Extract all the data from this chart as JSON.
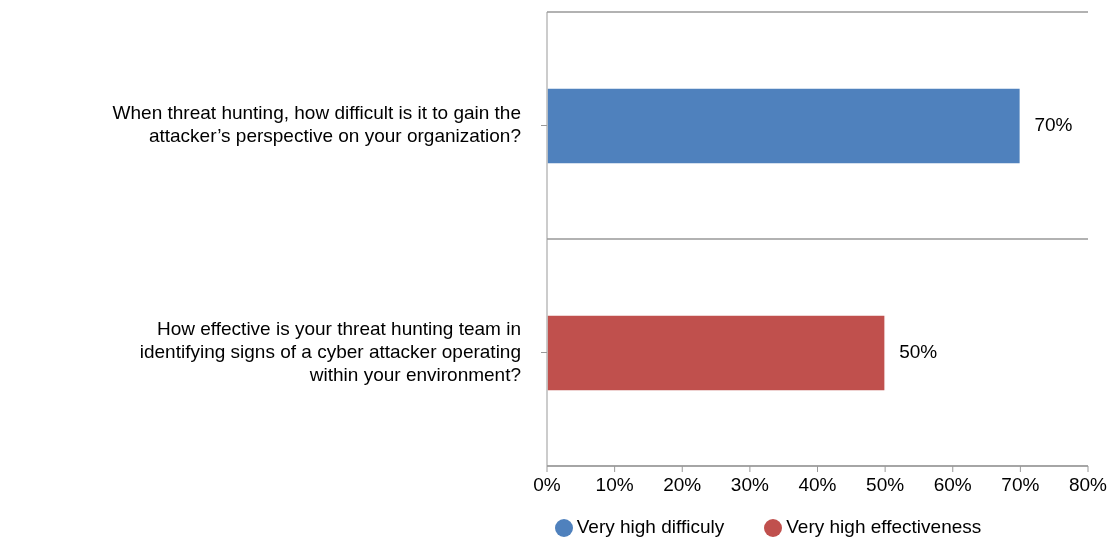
{
  "chart_data": {
    "type": "bar",
    "orientation": "horizontal",
    "stacked": true,
    "categories": [
      "When threat hunting, how difficult is it to gain the attacker’s perspective on your organization?",
      "How effective is your threat hunting team in identifying signs of a cyber attacker operating within your environment?"
    ],
    "series": [
      {
        "name": "Very high difficuly",
        "color": "#4f81bd",
        "values": [
          70,
          null
        ],
        "value_labels": [
          "70%",
          null
        ]
      },
      {
        "name": "Very high effectiveness",
        "color": "#c0504d",
        "values": [
          null,
          50
        ],
        "value_labels": [
          null,
          "50%"
        ]
      }
    ],
    "xlim": [
      0,
      80
    ],
    "xticks": [
      {
        "value": 0,
        "label": "0%"
      },
      {
        "value": 10,
        "label": "10%"
      },
      {
        "value": 20,
        "label": "20%"
      },
      {
        "value": 30,
        "label": "30%"
      },
      {
        "value": 40,
        "label": "40%"
      },
      {
        "value": 50,
        "label": "50%"
      },
      {
        "value": 60,
        "label": "60%"
      },
      {
        "value": 70,
        "label": "70%"
      },
      {
        "value": 80,
        "label": "80%"
      }
    ],
    "grid": "y",
    "legend": "bottom"
  }
}
